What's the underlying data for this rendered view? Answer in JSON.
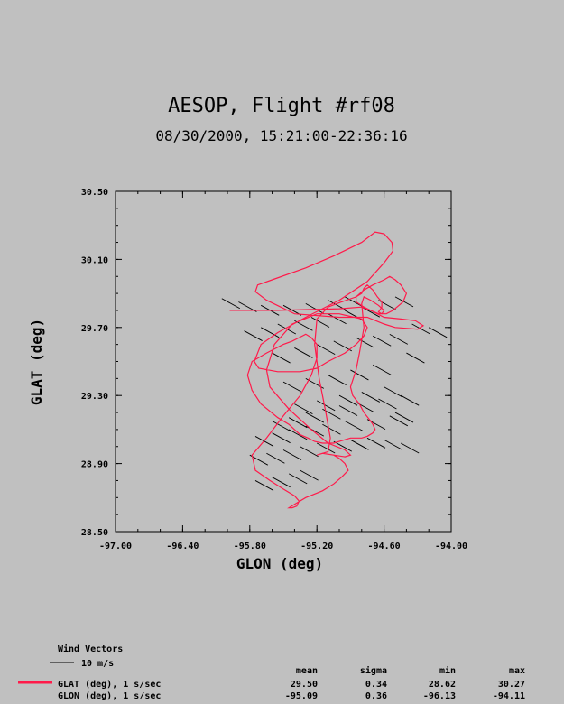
{
  "chart_data": {
    "type": "line",
    "title": "AESOP, Flight #rf08",
    "subtitle": "08/30/2000, 15:21:00-22:36:16",
    "xlabel": "GLON (deg)",
    "ylabel": "GLAT (deg)",
    "xlim": [
      -97.0,
      -94.0
    ],
    "ylim": [
      28.5,
      30.5
    ],
    "xticks": [
      "-97.00",
      "-96.40",
      "-95.80",
      "-95.20",
      "-94.60",
      "-94.00"
    ],
    "yticks": [
      "28.50",
      "28.90",
      "29.30",
      "29.70",
      "30.10",
      "30.50"
    ],
    "track_color": "#ff1a4a",
    "series": [
      {
        "x": [
          -95.98,
          -95.88,
          -95.55,
          -95.0,
          -94.8,
          -94.72,
          -94.6,
          -94.45,
          -94.32,
          -94.25,
          -94.3,
          -94.5,
          -94.6,
          -94.75,
          -95.0,
          -95.4,
          -95.65,
          -95.75,
          -95.73,
          -95.6,
          -95.3,
          -95.05,
          -94.8,
          -94.68,
          -94.6,
          -94.53,
          -94.52,
          -94.6,
          -94.75,
          -95.0,
          -95.3,
          -95.55,
          -95.7,
          -95.76,
          -95.72,
          -95.55,
          -95.35,
          -95.2,
          -95.1,
          -94.95,
          -94.85,
          -94.78,
          -94.75,
          -94.8,
          -95.0,
          -95.2,
          -95.42,
          -95.58,
          -95.65,
          -95.62,
          -95.45,
          -95.25,
          -95.1,
          -94.95,
          -94.9,
          -94.95,
          -95.05,
          -95.15,
          -95.1,
          -95.08,
          -95.12,
          -95.18,
          -95.22,
          -95.2,
          -95.1,
          -94.98,
          -94.85,
          -94.78,
          -94.7,
          -94.6,
          -94.55,
          -94.5,
          -94.45,
          -94.4,
          -94.43,
          -94.52,
          -94.58,
          -94.65,
          -94.72,
          -94.78,
          -94.85,
          -94.85,
          -94.8,
          -94.78,
          -94.75,
          -94.7,
          -94.66,
          -94.62,
          -94.62,
          -94.65,
          -94.62,
          -94.6,
          -94.65,
          -94.72,
          -94.78,
          -94.8,
          -94.78,
          -94.82,
          -94.85,
          -94.9,
          -94.88,
          -94.82,
          -94.78,
          -94.72,
          -94.7,
          -94.68,
          -94.7,
          -94.75,
          -94.8,
          -94.85,
          -94.9,
          -94.95,
          -95.0,
          -95.05,
          -95.15,
          -95.22,
          -95.28,
          -95.35,
          -95.4,
          -95.45,
          -95.55,
          -95.7,
          -95.78,
          -95.82,
          -95.78,
          -95.65,
          -95.5,
          -95.42,
          -95.36,
          -95.3,
          -95.25,
          -95.2,
          -95.2,
          -95.25,
          -95.35,
          -95.5,
          -95.65,
          -95.78,
          -95.75,
          -95.62,
          -95.5,
          -95.4,
          -95.36,
          -95.38,
          -95.42,
          -95.45,
          -95.4,
          -95.3,
          -95.15,
          -95.05,
          -94.98,
          -94.92,
          -94.95,
          -95.0,
          -95.05,
          -95.15,
          -95.2
        ],
        "y": [
          29.8,
          29.8,
          29.8,
          29.81,
          29.82,
          29.8,
          29.76,
          29.75,
          29.74,
          29.71,
          29.69,
          29.7,
          29.72,
          29.76,
          29.76,
          29.78,
          29.86,
          29.91,
          29.95,
          29.98,
          30.05,
          30.12,
          30.2,
          30.26,
          30.25,
          30.2,
          30.15,
          30.08,
          29.97,
          29.86,
          29.76,
          29.67,
          29.6,
          29.5,
          29.46,
          29.44,
          29.44,
          29.46,
          29.5,
          29.55,
          29.6,
          29.65,
          29.7,
          29.75,
          29.78,
          29.78,
          29.72,
          29.6,
          29.45,
          29.35,
          29.22,
          29.1,
          29.02,
          28.98,
          28.95,
          28.94,
          28.95,
          28.96,
          28.97,
          29.05,
          29.2,
          29.4,
          29.6,
          29.75,
          29.82,
          29.85,
          29.88,
          29.92,
          29.95,
          29.98,
          30.0,
          29.98,
          29.95,
          29.9,
          29.85,
          29.8,
          29.78,
          29.78,
          29.8,
          29.82,
          29.85,
          29.88,
          29.9,
          29.93,
          29.95,
          29.92,
          29.88,
          29.85,
          29.82,
          29.79,
          29.78,
          29.8,
          29.83,
          29.86,
          29.88,
          29.84,
          29.7,
          29.55,
          29.45,
          29.35,
          29.3,
          29.25,
          29.2,
          29.15,
          29.13,
          29.1,
          29.08,
          29.06,
          29.05,
          29.05,
          29.05,
          29.04,
          29.03,
          29.02,
          29.02,
          29.03,
          29.05,
          29.07,
          29.1,
          29.13,
          29.17,
          29.25,
          29.33,
          29.42,
          29.5,
          29.55,
          29.6,
          29.62,
          29.64,
          29.66,
          29.64,
          29.6,
          29.52,
          29.42,
          29.3,
          29.18,
          29.05,
          28.95,
          28.86,
          28.8,
          28.75,
          28.71,
          28.68,
          28.65,
          28.64,
          28.64,
          28.66,
          28.7,
          28.74,
          28.78,
          28.82,
          28.86,
          28.9,
          28.93,
          28.95,
          28.96,
          28.95
        ]
      }
    ],
    "wind_vectors": {
      "legend_label": "Wind Vectors",
      "scale_label": "10 m/s",
      "x": [
        -96.05,
        -95.9,
        -95.7,
        -95.5,
        -95.3,
        -95.1,
        -94.95,
        -95.85,
        -95.7,
        -95.55,
        -95.4,
        -95.25,
        -95.1,
        -94.95,
        -94.8,
        -94.65,
        -94.5,
        -94.35,
        -94.2,
        -95.6,
        -95.4,
        -95.2,
        -95.05,
        -94.85,
        -94.7,
        -94.55,
        -94.4,
        -95.5,
        -95.3,
        -95.1,
        -94.9,
        -94.7,
        -95.4,
        -95.2,
        -95.0,
        -94.8,
        -94.6,
        -94.45,
        -95.6,
        -95.45,
        -95.3,
        -95.15,
        -95.0,
        -94.85,
        -94.65,
        -94.5,
        -95.75,
        -95.6,
        -95.45,
        -95.3,
        -95.15,
        -94.95,
        -94.75,
        -94.55,
        -95.8,
        -95.65,
        -95.5,
        -95.35,
        -95.2,
        -95.05,
        -94.9,
        -95.75,
        -95.6,
        -95.45,
        -95.35,
        -94.9,
        -94.75,
        -94.6,
        -94.45
      ],
      "y": [
        29.87,
        29.85,
        29.83,
        29.83,
        29.84,
        29.86,
        29.88,
        29.68,
        29.7,
        29.72,
        29.74,
        29.76,
        29.78,
        29.8,
        29.82,
        29.86,
        29.88,
        29.72,
        29.7,
        29.55,
        29.58,
        29.6,
        29.62,
        29.64,
        29.65,
        29.66,
        29.55,
        29.38,
        29.4,
        29.42,
        29.45,
        29.48,
        29.25,
        29.27,
        29.3,
        29.32,
        29.35,
        29.3,
        29.15,
        29.17,
        29.2,
        29.22,
        29.24,
        29.26,
        29.28,
        29.2,
        29.06,
        29.08,
        29.1,
        29.12,
        29.13,
        29.15,
        29.16,
        29.18,
        28.95,
        28.96,
        28.98,
        29.0,
        29.02,
        29.03,
        29.04,
        28.8,
        28.82,
        28.84,
        28.86,
        29.04,
        29.05,
        29.04,
        29.02
      ]
    },
    "stats": {
      "headers": [
        "mean",
        "sigma",
        "min",
        "max"
      ],
      "rows": [
        {
          "label": "GLAT (deg), 1 s/sec",
          "color": "#ff1a4a",
          "mean": "29.50",
          "sigma": "0.34",
          "min": "28.62",
          "max": "30.27"
        },
        {
          "label": "GLON (deg), 1 s/sec",
          "color": "",
          "mean": "-95.09",
          "sigma": "0.36",
          "min": "-96.13",
          "max": "-94.11"
        }
      ]
    }
  }
}
